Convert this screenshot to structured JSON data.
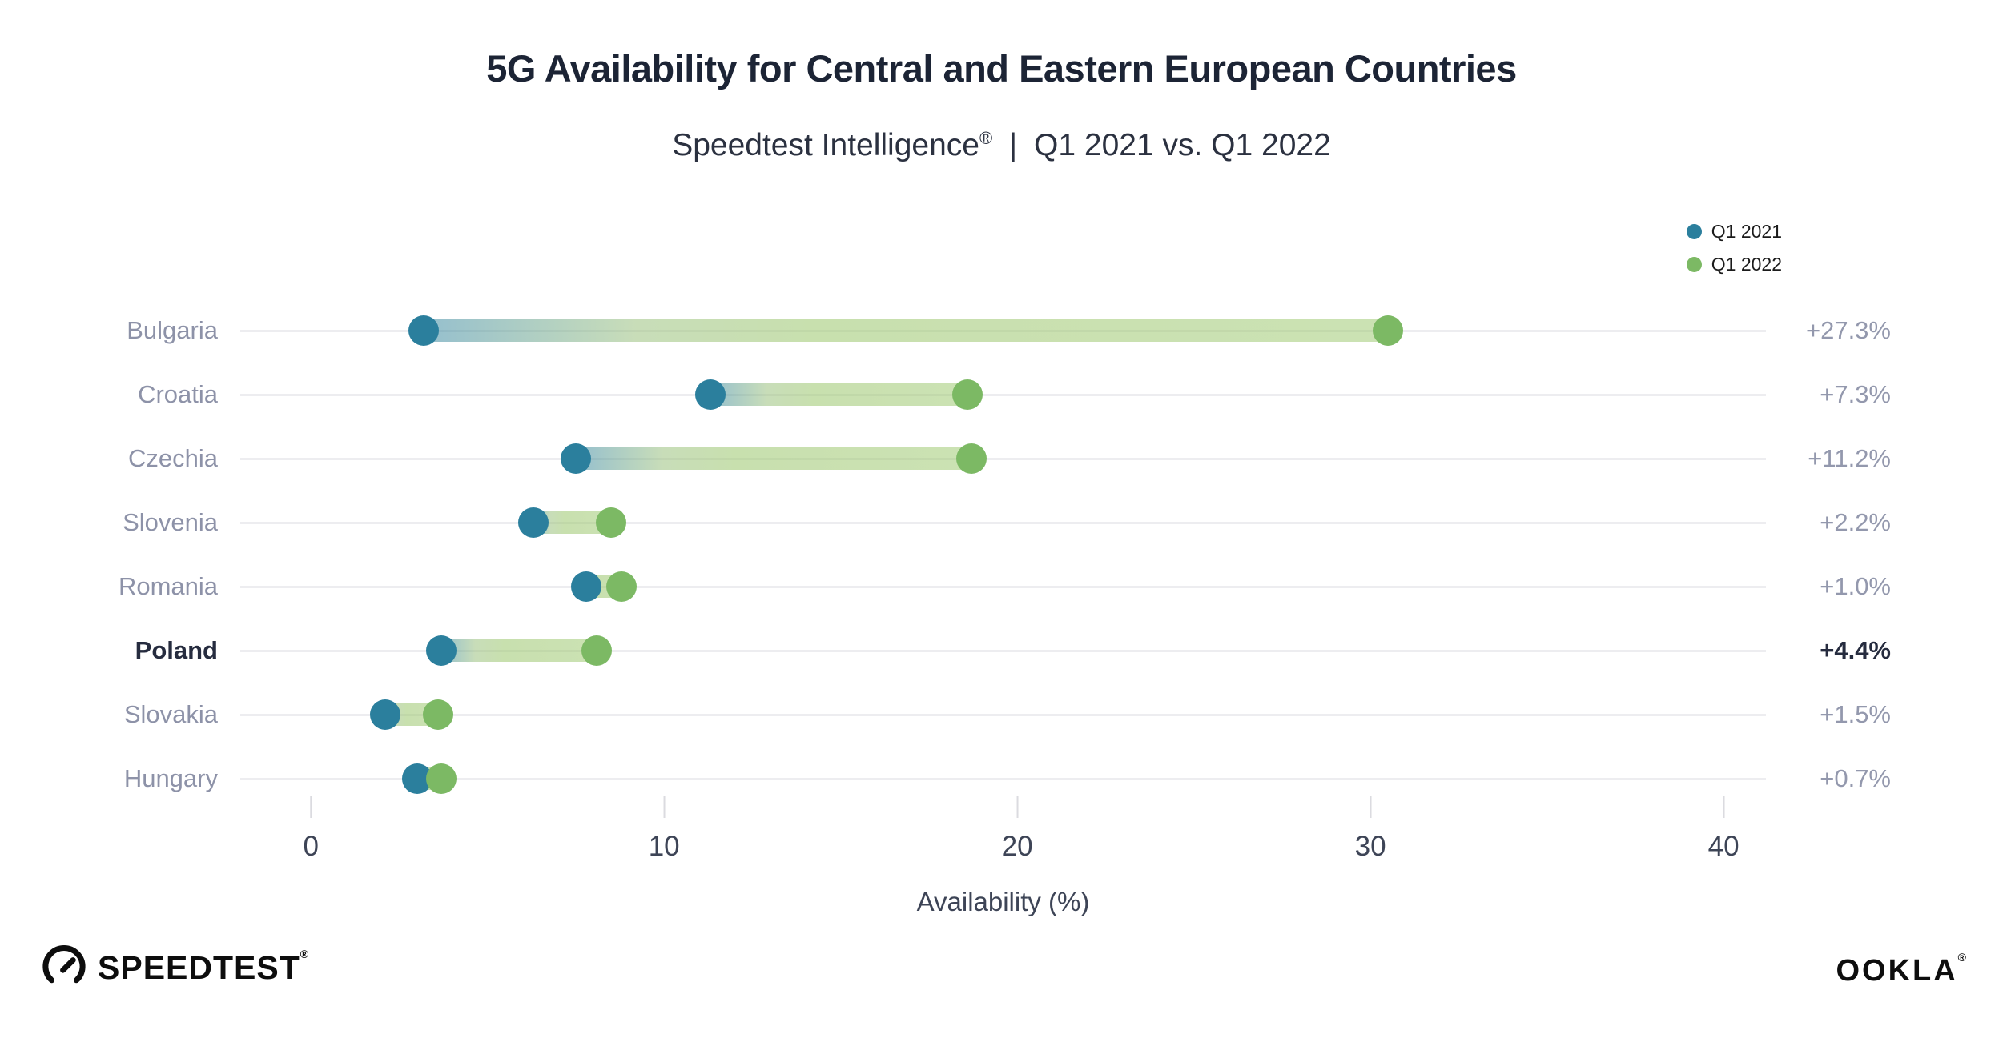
{
  "title": "5G Availability for Central and Eastern European Countries",
  "subtitle": {
    "product": "Speedtest Intelligence",
    "reg": "®",
    "separator": "|",
    "period": "Q1 2021 vs. Q1 2022"
  },
  "legend": {
    "items": [
      {
        "label": "Q1 2021",
        "color": "#2b7f9d"
      },
      {
        "label": "Q1 2022",
        "color": "#7cb964"
      }
    ]
  },
  "chart_data": {
    "type": "dumbbell",
    "title": "5G Availability for Central and Eastern European Countries",
    "subtitle": "Speedtest Intelligence® | Q1 2021 vs. Q1 2022",
    "categories": [
      "Bulgaria",
      "Croatia",
      "Czechia",
      "Slovenia",
      "Romania",
      "Poland",
      "Slovakia",
      "Hungary"
    ],
    "series": [
      {
        "name": "Q1 2021",
        "color": "#2b7f9d",
        "values": [
          3.2,
          11.3,
          7.5,
          6.3,
          7.8,
          3.7,
          2.1,
          3.0
        ]
      },
      {
        "name": "Q1 2022",
        "color": "#7cb964",
        "values": [
          30.5,
          18.6,
          18.7,
          8.5,
          8.8,
          8.1,
          3.6,
          3.7
        ]
      }
    ],
    "deltas": [
      "+27.3%",
      "+7.3%",
      "+11.2%",
      "+2.2%",
      "+1.0%",
      "+4.4%",
      "+1.5%",
      "+0.7%"
    ],
    "highlight_category": "Poland",
    "xlabel": "Availability (%)",
    "x_ticks": [
      0,
      10,
      20,
      30,
      40
    ],
    "xlim": [
      -2,
      41.2
    ],
    "grid": false,
    "legend_position": "top-right",
    "track_color": "#ededf0"
  },
  "footer": {
    "speedtest_label": "SPEEDTEST",
    "speedtest_reg": "®",
    "ookla_label": "OOKLA",
    "ookla_reg": "®"
  }
}
